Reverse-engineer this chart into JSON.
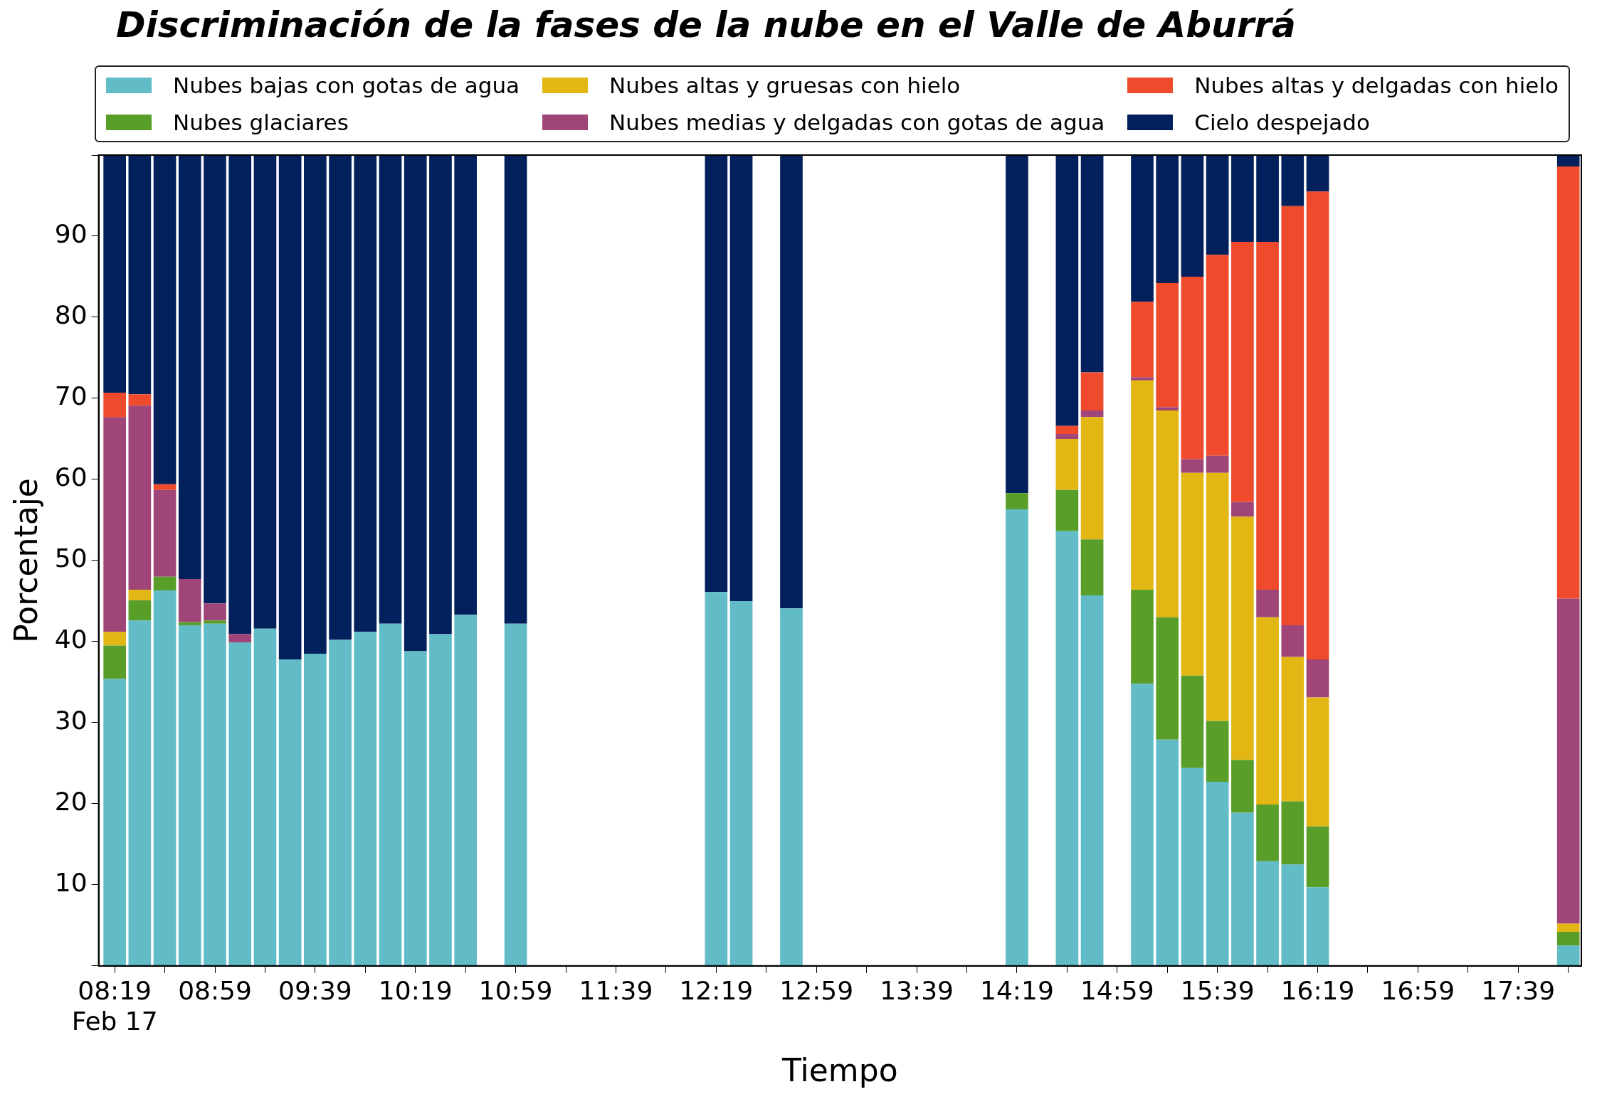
{
  "chart_data": {
    "type": "bar",
    "title": "Discriminación de la fases de la nube en el Valle de Aburrá",
    "xlabel": "Tiempo",
    "ylabel": "Porcentaje",
    "stacked": true,
    "legend": "top",
    "x": [
      8.3167,
      8.4833,
      8.65,
      8.8167,
      8.9833,
      9.15,
      9.3167,
      9.4833,
      9.65,
      9.8167,
      9.9833,
      10.15,
      10.3167,
      10.4833,
      10.65,
      10.9833,
      12.3167,
      12.4833,
      12.8167,
      14.3167,
      14.65,
      14.8167,
      15.15,
      15.3167,
      15.4833,
      15.65,
      15.8167,
      15.9833,
      16.15,
      16.3167,
      17.9833
    ],
    "xlim": [
      8.21,
      18.07
    ],
    "xticks": [
      {
        "value": 8.3167,
        "label": "08:19\nFeb 17"
      },
      {
        "value": 8.65,
        "label": null
      },
      {
        "value": 8.9833,
        "label": "08:59"
      },
      {
        "value": 9.3167,
        "label": null
      },
      {
        "value": 9.65,
        "label": "09:39"
      },
      {
        "value": 9.9833,
        "label": null
      },
      {
        "value": 10.3167,
        "label": "10:19"
      },
      {
        "value": 10.65,
        "label": null
      },
      {
        "value": 10.9833,
        "label": "10:59"
      },
      {
        "value": 11.3167,
        "label": null
      },
      {
        "value": 11.65,
        "label": "11:39"
      },
      {
        "value": 11.9833,
        "label": null
      },
      {
        "value": 12.3167,
        "label": "12:19"
      },
      {
        "value": 12.65,
        "label": null
      },
      {
        "value": 12.9833,
        "label": "12:59"
      },
      {
        "value": 13.3167,
        "label": null
      },
      {
        "value": 13.65,
        "label": "13:39"
      },
      {
        "value": 13.9833,
        "label": null
      },
      {
        "value": 14.3167,
        "label": "14:19"
      },
      {
        "value": 14.65,
        "label": null
      },
      {
        "value": 14.9833,
        "label": "14:59"
      },
      {
        "value": 15.3167,
        "label": null
      },
      {
        "value": 15.65,
        "label": "15:39"
      },
      {
        "value": 15.9833,
        "label": null
      },
      {
        "value": 16.3167,
        "label": "16:19"
      },
      {
        "value": 16.65,
        "label": null
      },
      {
        "value": 16.9833,
        "label": "16:59"
      },
      {
        "value": 17.3167,
        "label": null
      },
      {
        "value": 17.65,
        "label": "17:39"
      },
      {
        "value": 17.9833,
        "label": null
      }
    ],
    "ylim": [
      0,
      100
    ],
    "yticks": [
      {
        "value": 0,
        "label": null
      },
      10,
      20,
      30,
      40,
      50,
      60,
      70,
      80,
      90,
      {
        "value": 100,
        "label": null
      }
    ],
    "series": [
      {
        "name": "Nubes bajas con gotas de agua",
        "color": "#62bcc8",
        "values": [
          35.4,
          42.6,
          46.3,
          42.0,
          42.2,
          39.9,
          41.6,
          37.8,
          38.5,
          40.2,
          41.2,
          42.2,
          38.8,
          40.9,
          43.3,
          42.2,
          46.1,
          45.0,
          44.1,
          56.3,
          53.6,
          45.7,
          34.8,
          27.9,
          24.4,
          22.7,
          18.9,
          12.9,
          12.5,
          9.7,
          2.5
        ]
      },
      {
        "name": "Nubes glaciares",
        "color": "#5a9e2a",
        "values": [
          4.1,
          2.5,
          1.7,
          0.4,
          0.4,
          0,
          0,
          0,
          0,
          0,
          0,
          0,
          0,
          0,
          0,
          0,
          0,
          0,
          0,
          2.0,
          5.1,
          6.9,
          11.6,
          15.1,
          11.4,
          7.5,
          6.5,
          7.0,
          7.8,
          7.5,
          1.7
        ]
      },
      {
        "name": "Nubes altas y gruesas con hielo",
        "color": "#e2b714",
        "values": [
          1.7,
          1.3,
          0,
          0,
          0,
          0,
          0,
          0,
          0,
          0,
          0,
          0,
          0,
          0,
          0,
          0,
          0,
          0,
          0,
          0,
          6.3,
          15.1,
          25.8,
          25.5,
          25.0,
          30.6,
          30.0,
          23.1,
          17.8,
          15.9,
          1.0
        ]
      },
      {
        "name": "Nubes medias y delgadas con gotas de agua",
        "color": "#a04577",
        "values": [
          26.5,
          22.7,
          10.7,
          5.3,
          2.1,
          1.0,
          0,
          0,
          0,
          0,
          0,
          0,
          0,
          0,
          0,
          0,
          0,
          0,
          0,
          0,
          0.6,
          0.8,
          0.4,
          0.4,
          1.7,
          2.1,
          1.8,
          3.4,
          3.9,
          4.7,
          40.1
        ]
      },
      {
        "name": "Nubes altas y delgadas con hielo",
        "color": "#ee4a2b",
        "values": [
          3.0,
          1.4,
          0.7,
          0,
          0,
          0,
          0,
          0,
          0,
          0,
          0,
          0,
          0,
          0,
          0,
          0,
          0,
          0,
          0,
          0,
          1.0,
          4.7,
          9.3,
          15.3,
          22.5,
          24.8,
          32.1,
          42.9,
          51.7,
          57.7,
          53.3
        ]
      },
      {
        "name": "Cielo despejado",
        "color": "#02205c",
        "values": [
          29.3,
          29.5,
          40.6,
          52.3,
          55.3,
          59.1,
          58.4,
          62.2,
          61.5,
          59.8,
          58.8,
          57.8,
          61.2,
          59.1,
          56.7,
          57.8,
          53.9,
          55.0,
          55.9,
          41.7,
          33.4,
          26.8,
          18.1,
          15.8,
          15.0,
          12.3,
          10.7,
          10.7,
          6.3,
          4.5,
          1.4
        ]
      }
    ]
  }
}
